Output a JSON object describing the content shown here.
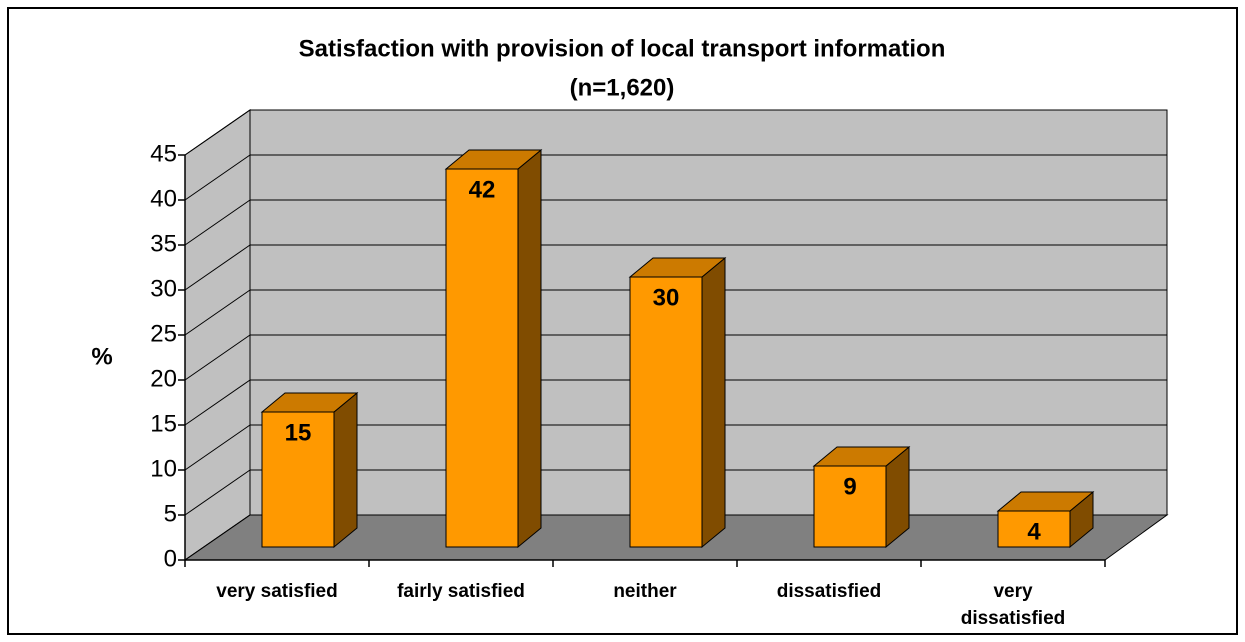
{
  "chart_data": {
    "type": "bar3d",
    "title": "Satisfaction with provision of local transport information",
    "subtitle": "(n=1,620)",
    "y_label": "%",
    "categories": [
      "very satisfied",
      "fairly satisfied",
      "neither",
      "dissatisfied",
      "very dissatisfied"
    ],
    "values": [
      15,
      42,
      30,
      9,
      4
    ],
    "color": "#ff9900",
    "ylim": [
      0,
      45
    ],
    "yticks": [
      0,
      5,
      10,
      15,
      20,
      25,
      30,
      35,
      40,
      45
    ],
    "grid": true
  }
}
